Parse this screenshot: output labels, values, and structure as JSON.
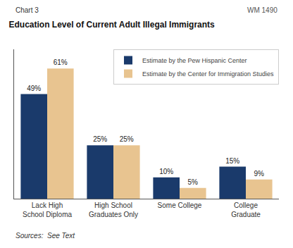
{
  "chart_data": {
    "type": "bar",
    "title": "Education Level of Current Adult Illegal Immigrants",
    "categories": [
      "Lack High\nSchool Diploma",
      "High School\nGraduates Only",
      "Some College",
      "College\nGraduate"
    ],
    "series": [
      {
        "name": "Estimate by the Pew Hispanic Center",
        "color": "#1a3a6b",
        "values": [
          49,
          25,
          10,
          15
        ],
        "value_labels": [
          "49%",
          "25%",
          "10%",
          "15%"
        ]
      },
      {
        "name": "Estimate by the Center for Immigration Studies",
        "color": "#e8c490",
        "values": [
          61,
          25,
          5,
          9
        ],
        "value_labels": [
          "61%",
          "25%",
          "5%",
          "9%"
        ]
      }
    ],
    "ylim": [
      0,
      70
    ],
    "grid": false,
    "legend": "upper right",
    "data_labels": true,
    "tick_labels": "x",
    "annotations": [
      "Chart 3",
      "WM 1490",
      "Sources:  See Text"
    ]
  }
}
